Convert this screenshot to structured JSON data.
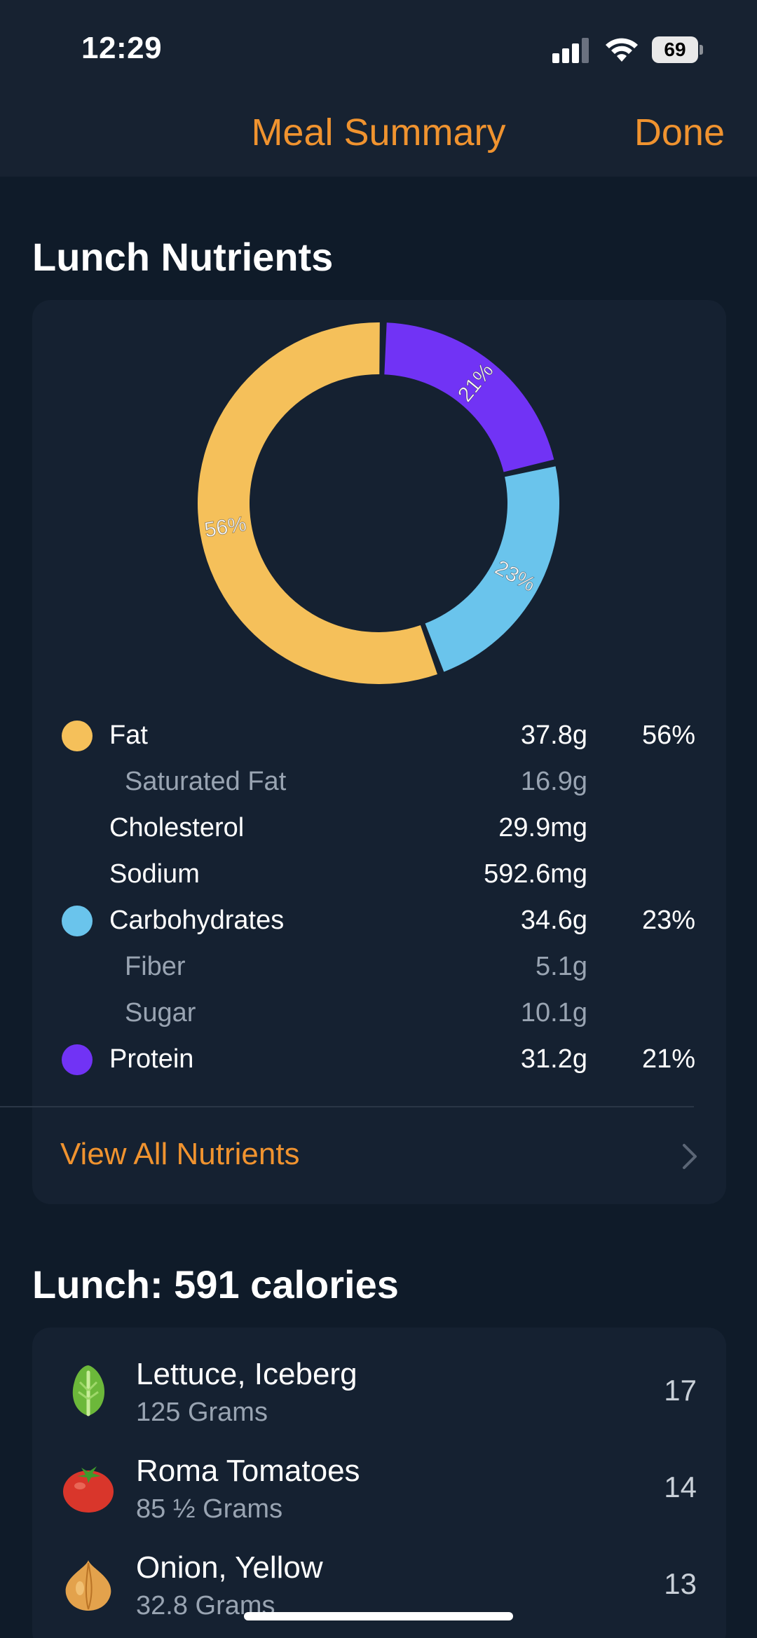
{
  "status": {
    "time": "12:29",
    "battery": "69"
  },
  "nav": {
    "title": "Meal Summary",
    "done": "Done"
  },
  "nutrients": {
    "title": "Lunch Nutrients",
    "rows": [
      {
        "name": "Fat",
        "amount": "37.8g",
        "pct": "56%",
        "color": "#f5c05a"
      },
      {
        "name": "Saturated Fat",
        "amount": "16.9g"
      },
      {
        "name": "Cholesterol",
        "amount": "29.9mg"
      },
      {
        "name": "Sodium",
        "amount": "592.6mg"
      },
      {
        "name": "Carbohydrates",
        "amount": "34.6g",
        "pct": "23%",
        "color": "#6ac4ec"
      },
      {
        "name": "Fiber",
        "amount": "5.1g"
      },
      {
        "name": "Sugar",
        "amount": "10.1g"
      },
      {
        "name": "Protein",
        "amount": "31.2g",
        "pct": "21%",
        "color": "#7133f5"
      }
    ],
    "view_all": "View All Nutrients"
  },
  "chart_data": {
    "type": "pie",
    "categories": [
      "Fat",
      "Carbohydrates",
      "Protein"
    ],
    "values": [
      56,
      23,
      21
    ],
    "labels": [
      "56%",
      "23%",
      "21%"
    ],
    "colors": [
      "#f5c05a",
      "#6ac4ec",
      "#7133f5"
    ]
  },
  "meal": {
    "title": "Lunch: 591 calories",
    "items": [
      {
        "name": "Lettuce, Iceberg",
        "qty": "125 Grams",
        "cal": "17",
        "icon": "lettuce-icon"
      },
      {
        "name": "Roma Tomatoes",
        "qty": "85 ½ Grams",
        "cal": "14",
        "icon": "tomato-icon"
      },
      {
        "name": "Onion, Yellow",
        "qty": "32.8 Grams",
        "cal": "13",
        "icon": "onion-icon"
      }
    ]
  }
}
